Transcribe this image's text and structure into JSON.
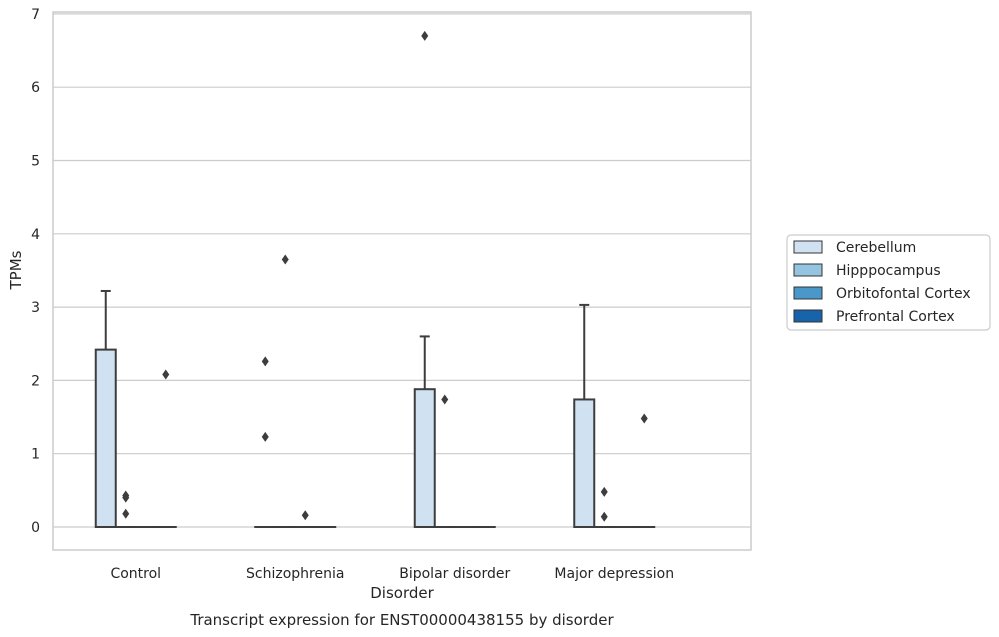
{
  "chart_data": {
    "type": "box",
    "xlabel": "Disorder",
    "ylabel": "TPMs",
    "caption": "Transcript expression for ENST00000438155 by disorder",
    "categories": [
      "Control",
      "Schizophrenia",
      "Bipolar disorder",
      "Major depression"
    ],
    "yticks": [
      0,
      1,
      2,
      3,
      4,
      5,
      6,
      7
    ],
    "ylim": [
      -0.3,
      7.05
    ],
    "grid": true,
    "legend_position": "right",
    "series": [
      {
        "name": "Cerebellum",
        "color": "#d0e1f2",
        "boxes": [
          {
            "q1": 0,
            "median": 0,
            "q3": 2.42,
            "whisker_low": 0,
            "whisker_high": 3.22,
            "outliers": []
          },
          {
            "q1": 0,
            "median": 0,
            "q3": 0,
            "whisker_low": 0,
            "whisker_high": 0,
            "outliers": [
              1.23,
              2.26
            ]
          },
          {
            "q1": 0,
            "median": 0,
            "q3": 1.88,
            "whisker_low": 0,
            "whisker_high": 2.6,
            "outliers": [
              6.7
            ]
          },
          {
            "q1": 0,
            "median": 0,
            "q3": 1.74,
            "whisker_low": 0,
            "whisker_high": 3.03,
            "outliers": []
          }
        ]
      },
      {
        "name": "Hipppocampus",
        "color": "#94c4df",
        "boxes": [
          {
            "q1": 0,
            "median": 0,
            "q3": 0,
            "whisker_low": 0,
            "whisker_high": 0,
            "outliers": [
              0.18,
              0.4,
              0.43
            ]
          },
          {
            "q1": 0,
            "median": 0,
            "q3": 0,
            "whisker_low": 0,
            "whisker_high": 0,
            "outliers": [
              3.65
            ]
          },
          {
            "q1": 0,
            "median": 0,
            "q3": 0,
            "whisker_low": 0,
            "whisker_high": 0,
            "outliers": [
              1.74
            ]
          },
          {
            "q1": 0,
            "median": 0,
            "q3": 0,
            "whisker_low": 0,
            "whisker_high": 0,
            "outliers": [
              0.14,
              0.48
            ]
          }
        ]
      },
      {
        "name": "Orbitofontal Cortex",
        "color": "#4a98c9",
        "boxes": [
          {
            "q1": 0,
            "median": 0,
            "q3": 0,
            "whisker_low": 0,
            "whisker_high": 0,
            "outliers": []
          },
          {
            "q1": 0,
            "median": 0,
            "q3": 0,
            "whisker_low": 0,
            "whisker_high": 0,
            "outliers": [
              0.16
            ]
          },
          {
            "q1": 0,
            "median": 0,
            "q3": 0,
            "whisker_low": 0,
            "whisker_high": 0,
            "outliers": []
          },
          {
            "q1": 0,
            "median": 0,
            "q3": 0,
            "whisker_low": 0,
            "whisker_high": 0,
            "outliers": []
          }
        ]
      },
      {
        "name": "Prefrontal Cortex",
        "color": "#1764ab",
        "boxes": [
          {
            "q1": 0,
            "median": 0,
            "q3": 0,
            "whisker_low": 0,
            "whisker_high": 0,
            "outliers": [
              2.08
            ]
          },
          {
            "q1": 0,
            "median": 0,
            "q3": 0,
            "whisker_low": 0,
            "whisker_high": 0,
            "outliers": []
          },
          {
            "q1": 0,
            "median": 0,
            "q3": 0,
            "whisker_low": 0,
            "whisker_high": 0,
            "outliers": []
          },
          {
            "q1": 0,
            "median": 0,
            "q3": 0,
            "whisker_low": 0,
            "whisker_high": 0,
            "outliers": [
              1.48
            ]
          }
        ]
      }
    ]
  }
}
